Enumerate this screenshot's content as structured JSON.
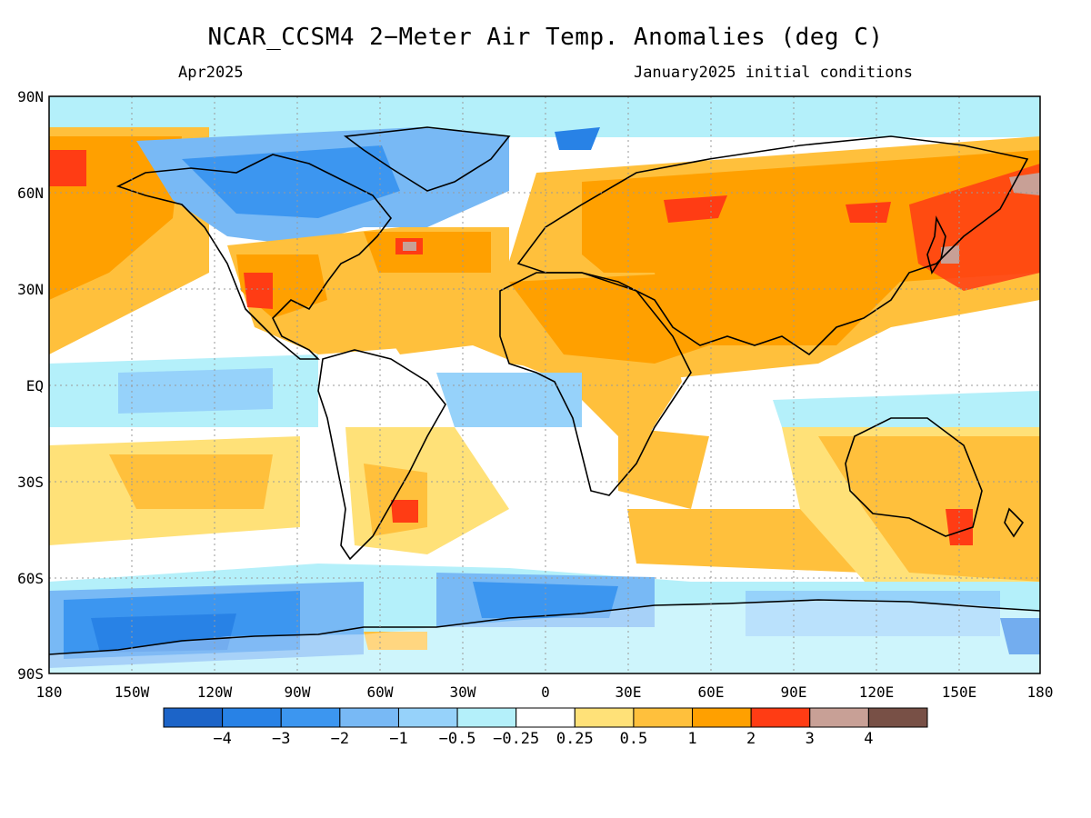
{
  "header": {
    "title": "NCAR_CCSM4 2−Meter Air Temp. Anomalies (deg C)",
    "valid_month": "Apr2025",
    "init_conditions": "January2025 initial conditions"
  },
  "axes": {
    "lat_labels": [
      "90N",
      "60N",
      "30N",
      "EQ",
      "30S",
      "60S",
      "90S"
    ],
    "lon_labels": [
      "180",
      "150W",
      "120W",
      "90W",
      "60W",
      "30W",
      "0",
      "30E",
      "60E",
      "90E",
      "120E",
      "150E",
      "180"
    ]
  },
  "colorbar": {
    "colors": [
      "#1c64c8",
      "#2882e6",
      "#3c96f0",
      "#78b9f5",
      "#96d2fa",
      "#b4f0fa",
      "#ffffff",
      "#ffe178",
      "#ffc03c",
      "#ffa000",
      "#ff3c14",
      "#c8a096",
      "#785046"
    ],
    "labels": [
      "−4",
      "−3",
      "−2",
      "−1",
      "−0.5",
      "−0.25",
      "0.25",
      "0.5",
      "1",
      "2",
      "3",
      "4"
    ]
  },
  "palette": {
    "ocean_neutral": "#ffffff",
    "coast": "#000000",
    "grid": "#9a9a9a"
  }
}
